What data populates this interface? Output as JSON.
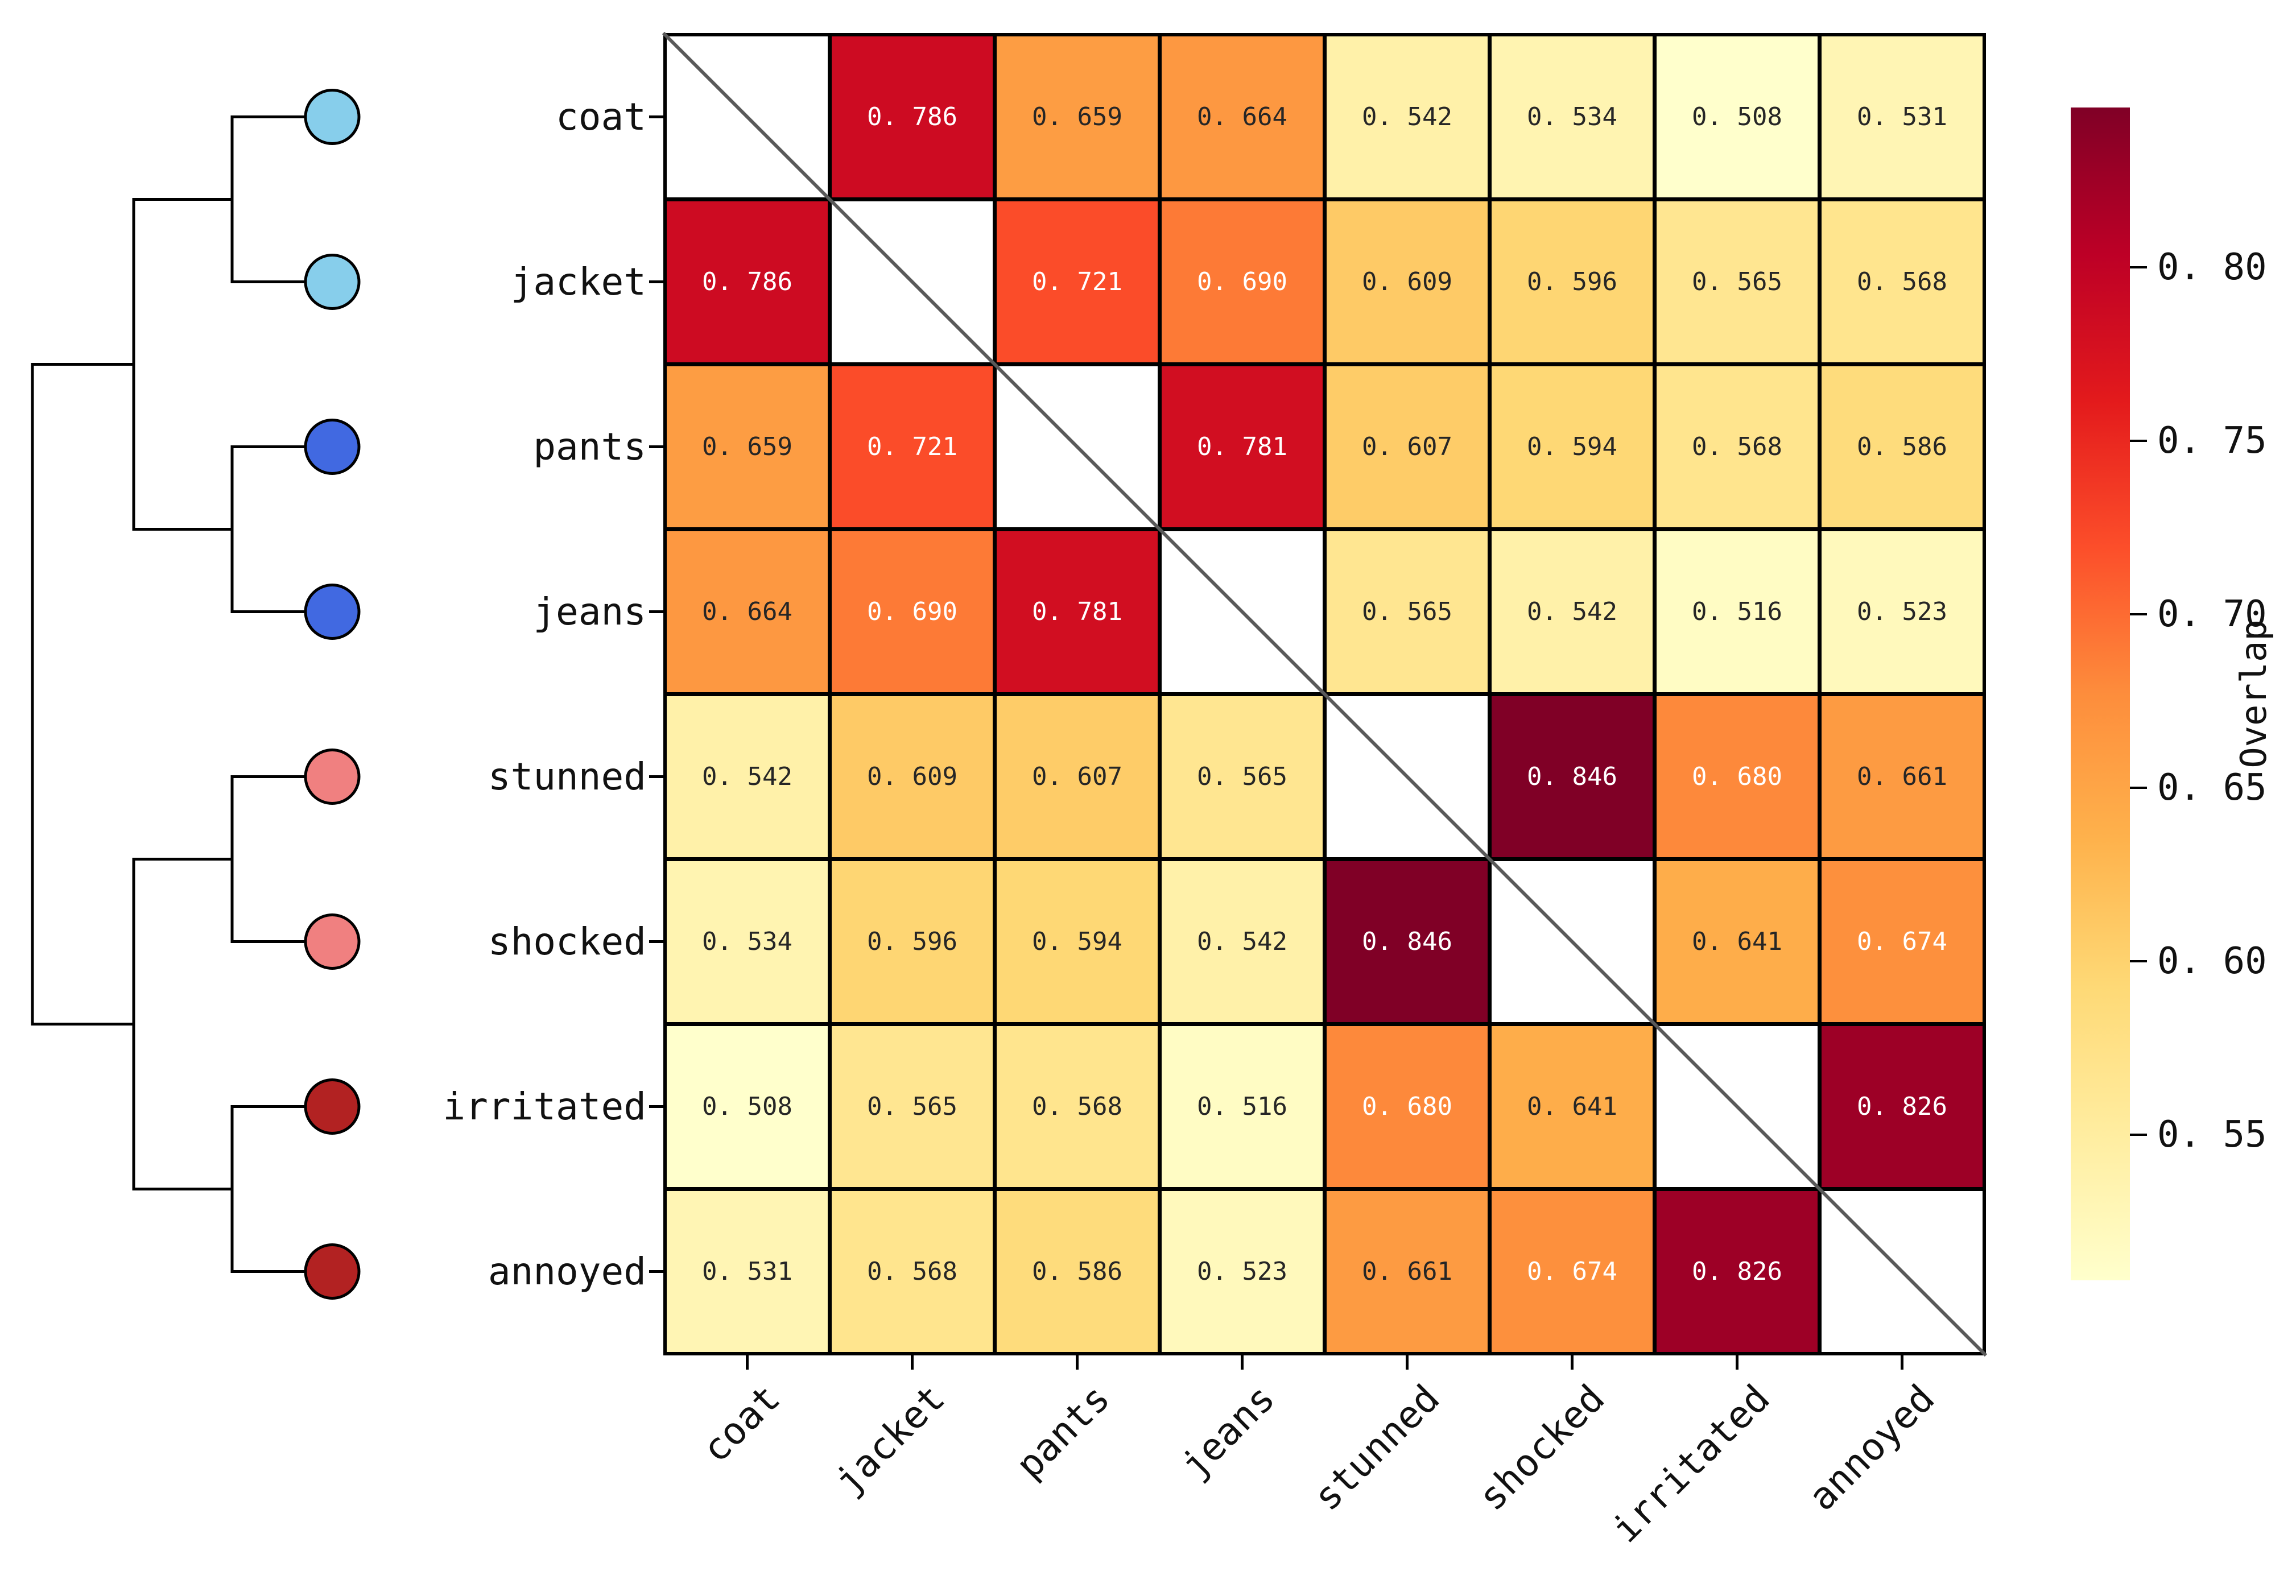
{
  "chart_data": {
    "type": "heatmap",
    "title": "",
    "categories": [
      "coat",
      "jacket",
      "pants",
      "jeans",
      "stunned",
      "shocked",
      "irritated",
      "annoyed"
    ],
    "matrix": [
      [
        null,
        0.786,
        0.659,
        0.664,
        0.542,
        0.534,
        0.508,
        0.531
      ],
      [
        0.786,
        null,
        0.721,
        0.69,
        0.609,
        0.596,
        0.565,
        0.568
      ],
      [
        0.659,
        0.721,
        null,
        0.781,
        0.607,
        0.594,
        0.568,
        0.586
      ],
      [
        0.664,
        0.69,
        0.781,
        null,
        0.565,
        0.542,
        0.516,
        0.523
      ],
      [
        0.542,
        0.609,
        0.607,
        0.565,
        null,
        0.846,
        0.68,
        0.661
      ],
      [
        0.534,
        0.596,
        0.594,
        0.542,
        0.846,
        null,
        0.641,
        0.674
      ],
      [
        0.508,
        0.565,
        0.568,
        0.516,
        0.68,
        0.641,
        null,
        0.826
      ],
      [
        0.531,
        0.568,
        0.586,
        0.523,
        0.661,
        0.674,
        0.826,
        null
      ]
    ],
    "value_decimals": 3,
    "colorbar": {
      "label": "Overlap",
      "ticks": [
        0.8,
        0.75,
        0.7,
        0.65,
        0.6,
        0.55
      ],
      "tick_decimals": 2,
      "vmin": 0.508,
      "vmax": 0.846,
      "colormap": "YlOrRd",
      "position": "right"
    },
    "diagonal": {
      "shown": true,
      "color": "#595959"
    },
    "grid_line_color": "#000000",
    "dendrogram": {
      "orientation": "left",
      "leaves": [
        {
          "label": "coat",
          "color": "#87CEEB"
        },
        {
          "label": "jacket",
          "color": "#87CEEB"
        },
        {
          "label": "pants",
          "color": "#4169E1"
        },
        {
          "label": "jeans",
          "color": "#4169E1"
        },
        {
          "label": "stunned",
          "color": "#F08080"
        },
        {
          "label": "shocked",
          "color": "#F08080"
        },
        {
          "label": "irritated",
          "color": "#B22222"
        },
        {
          "label": "annoyed",
          "color": "#B22222"
        }
      ],
      "structure": [
        [
          [
            0,
            1
          ],
          [
            2,
            3
          ]
        ],
        [
          [
            4,
            5
          ],
          [
            6,
            7
          ]
        ]
      ],
      "line_color": "#000000"
    }
  }
}
